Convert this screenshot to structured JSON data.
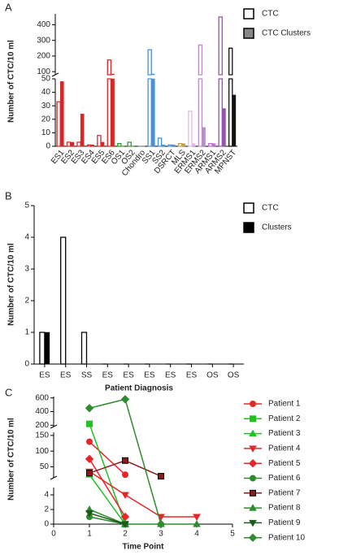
{
  "chart_data": [
    {
      "type": "broken-bar",
      "panel": "A",
      "ylabel": "Number of CTC/10 ml",
      "categories": [
        "ES1",
        "ES2",
        "ES3",
        "ES4",
        "ES5",
        "ES6",
        "OS1",
        "OS2",
        "Chondro",
        "SS1",
        "SS2",
        "DSRCT",
        "MLS",
        "ERMS1",
        "ERMS2",
        "ARMS1",
        "ARMS2",
        "MPNST"
      ],
      "category_colors": [
        "#d62728",
        "#d62728",
        "#d62728",
        "#d62728",
        "#d62728",
        "#d62728",
        "#2ca02c",
        "#2ca02c",
        "#888888",
        "#4a90d9",
        "#4a90d9",
        "#4a90d9",
        "#c8a040",
        "#e4b8e4",
        "#b890c8",
        "#c070d0",
        "#9c4fb8",
        "#111111"
      ],
      "series": [
        {
          "name": "CTC",
          "color": "#ffffff",
          "values": [
            33,
            3,
            3,
            1,
            8,
            175,
            2,
            3,
            0,
            240,
            6,
            1,
            2,
            26,
            270,
            2,
            450,
            250
          ]
        },
        {
          "name": "CTC Clusters",
          "color": "#888888",
          "values": [
            48,
            3,
            24,
            1,
            3,
            85,
            0,
            0,
            0,
            85,
            1,
            1,
            2,
            2,
            14,
            2,
            28,
            38
          ]
        }
      ],
      "y_segments": [
        {
          "ylim": [
            0,
            50
          ],
          "yticks": [
            0,
            10,
            20,
            30,
            40,
            50
          ]
        },
        {
          "ylim": [
            80,
            470
          ],
          "yticks": [
            100,
            200,
            300,
            400
          ]
        }
      ]
    },
    {
      "type": "bar",
      "panel": "B",
      "ylabel": "Number of CTC/10 ml",
      "xlabel": "Patient Diagnosis",
      "categories": [
        "ES",
        "ES",
        "SS",
        "ES",
        "ES",
        "ES",
        "ES",
        "ES",
        "OS",
        "OS"
      ],
      "series": [
        {
          "name": "CTC",
          "color": "#ffffff",
          "values": [
            1,
            4,
            1,
            0,
            0,
            0,
            0,
            0,
            0,
            0
          ]
        },
        {
          "name": "Clusters",
          "color": "#000000",
          "values": [
            1,
            0,
            0,
            0,
            0,
            0,
            0,
            0,
            0,
            0
          ]
        }
      ],
      "y_segments": [
        {
          "ylim": [
            0,
            5
          ],
          "yticks": [
            0,
            1,
            2,
            3,
            4,
            5
          ]
        }
      ]
    },
    {
      "type": "line",
      "panel": "C",
      "ylabel": "Number of CTC/10 ml",
      "xlabel": "Time Point",
      "x": [
        1,
        2,
        3,
        4
      ],
      "xlim": [
        0,
        5
      ],
      "xticks": [
        0,
        1,
        2,
        3,
        4,
        5
      ],
      "series": [
        {
          "name": "Patient 1",
          "color": "#e8262a",
          "marker": "circle",
          "values": [
            130,
            25,
            null,
            null
          ]
        },
        {
          "name": "Patient 2",
          "color": "#22c022",
          "marker": "square",
          "values": [
            220,
            0,
            null,
            null
          ]
        },
        {
          "name": "Patient 3",
          "color": "#22c022",
          "marker": "triangle",
          "values": [
            25,
            0,
            null,
            null
          ]
        },
        {
          "name": "Patient 4",
          "color": "#e8262a",
          "marker": "triangle-down",
          "values": [
            35,
            4,
            1,
            1
          ]
        },
        {
          "name": "Patient 5",
          "color": "#e8262a",
          "marker": "diamond",
          "values": [
            75,
            1,
            null,
            null
          ]
        },
        {
          "name": "Patient 6",
          "color": "#2e8b2e",
          "marker": "circle",
          "values": [
            1,
            0,
            null,
            null
          ]
        },
        {
          "name": "Patient 7",
          "color": "#8b1a1a",
          "marker": "square",
          "values": [
            30,
            70,
            20,
            null
          ]
        },
        {
          "name": "Patient 8",
          "color": "#2e8b2e",
          "marker": "triangle",
          "values": [
            2,
            0,
            0,
            0
          ]
        },
        {
          "name": "Patient 9",
          "color": "#1e5a1e",
          "marker": "triangle-down",
          "values": [
            1.5,
            0,
            null,
            null
          ]
        },
        {
          "name": "Patient 10",
          "color": "#2e8b2e",
          "marker": "diamond",
          "values": [
            450,
            580,
            0,
            null
          ]
        }
      ],
      "y_segments": [
        {
          "ylim": [
            0,
            5
          ],
          "yticks": [
            0,
            2,
            4
          ]
        },
        {
          "ylim": [
            15,
            160
          ],
          "yticks": [
            50,
            100,
            150
          ]
        },
        {
          "ylim": [
            180,
            620
          ],
          "yticks": [
            200,
            400,
            600
          ]
        }
      ]
    }
  ]
}
